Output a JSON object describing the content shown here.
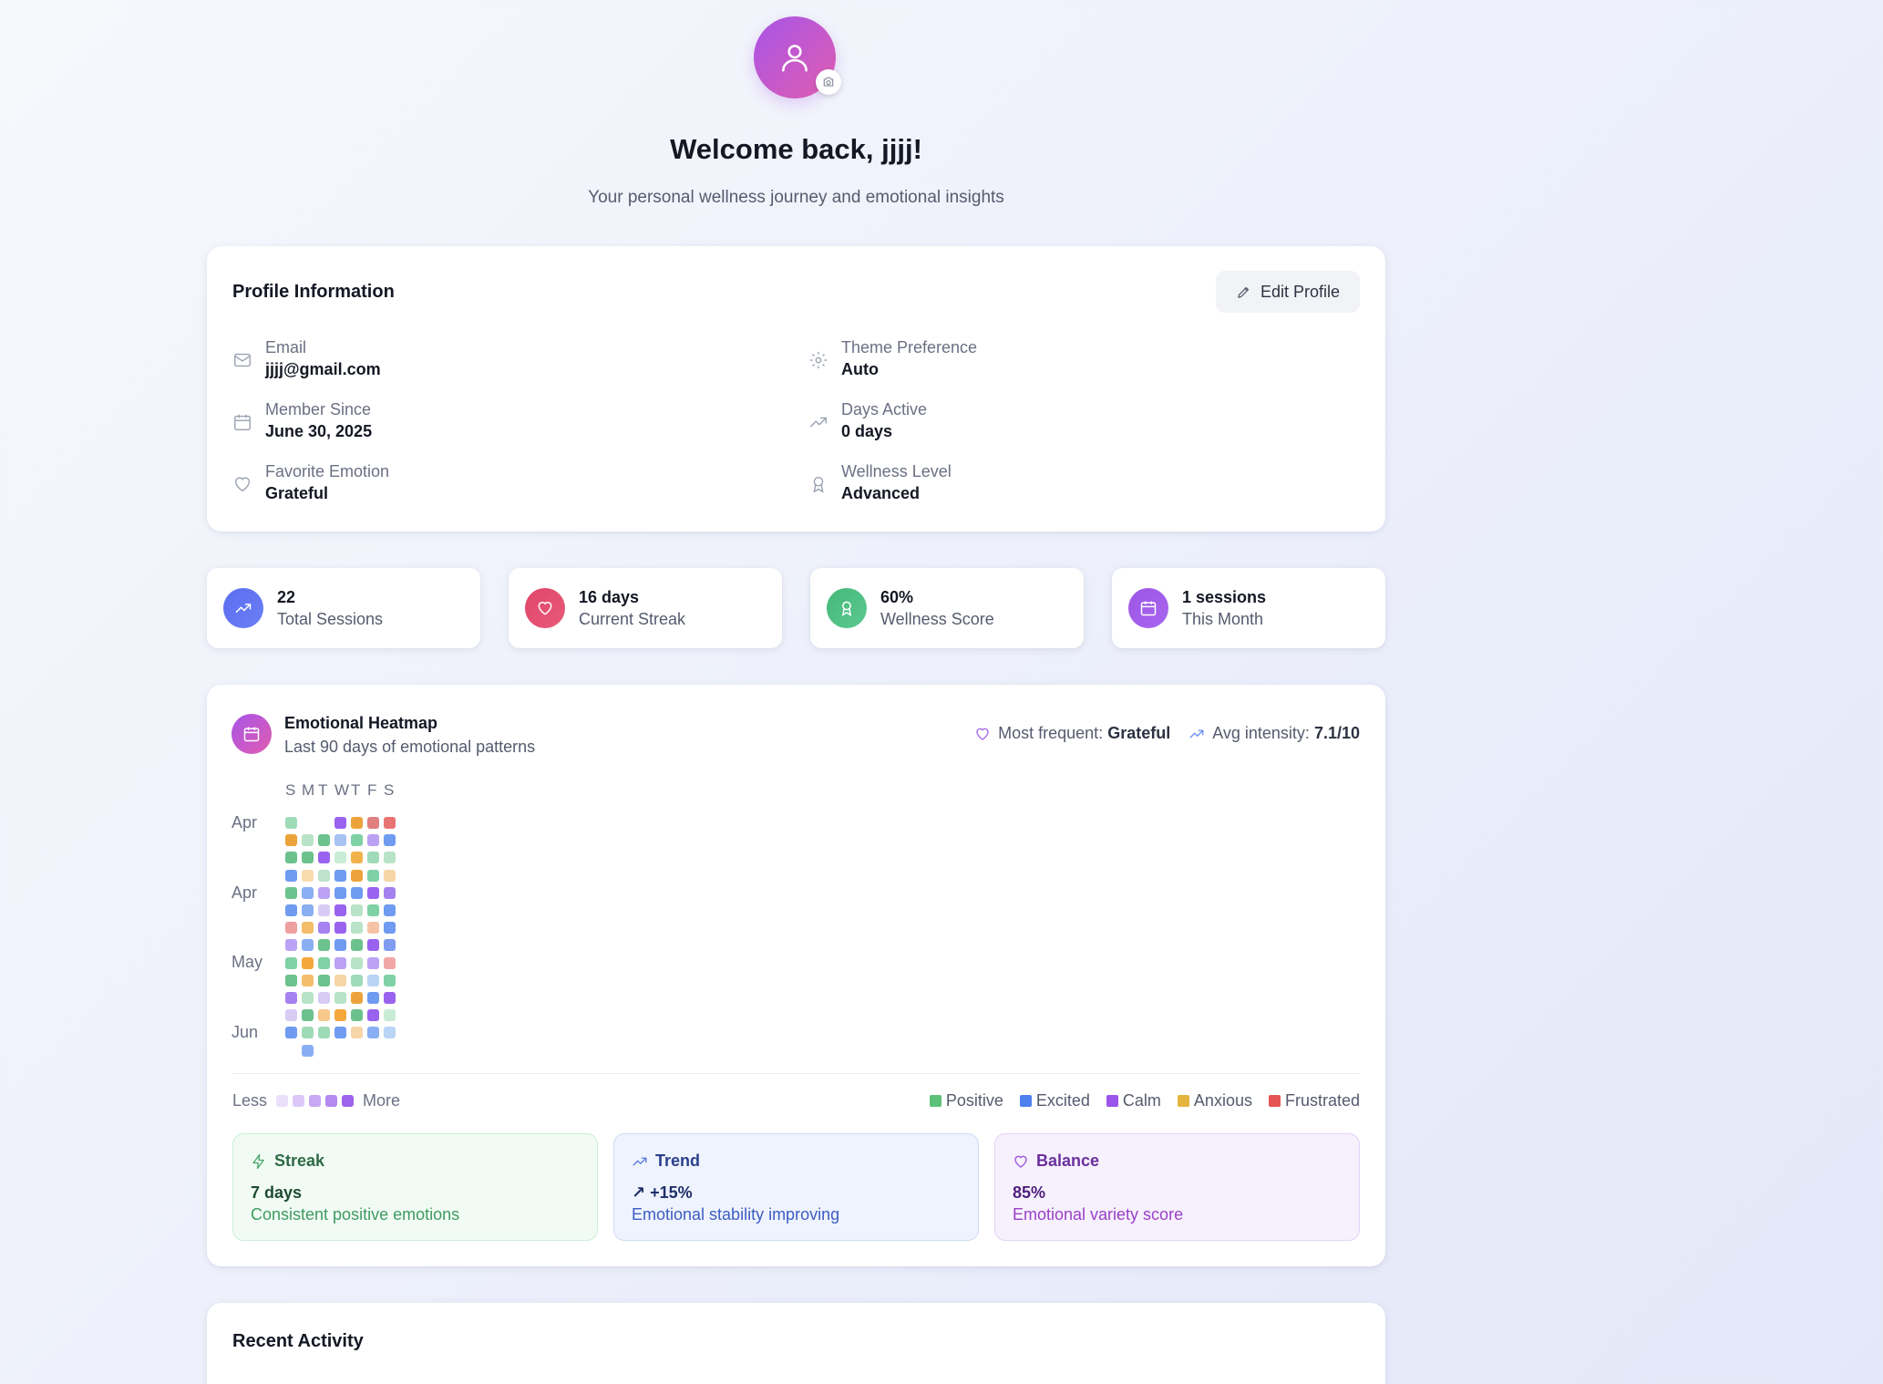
{
  "header": {
    "title": "Welcome back, jjjj!",
    "subtitle": "Your personal wellness journey and emotional insights",
    "avatar_icon": "user-icon",
    "camera_icon": "camera-icon"
  },
  "profile": {
    "heading": "Profile Information",
    "edit_label": "Edit Profile",
    "fields": [
      {
        "label": "Email",
        "value": "jjjj@gmail.com",
        "icon": "mail-icon"
      },
      {
        "label": "Theme Preference",
        "value": "Auto",
        "icon": "gear-icon"
      },
      {
        "label": "Member Since",
        "value": "June 30, 2025",
        "icon": "calendar-icon"
      },
      {
        "label": "Days Active",
        "value": "0 days",
        "icon": "trending-up-icon"
      },
      {
        "label": "Favorite Emotion",
        "value": "Grateful",
        "icon": "heart-icon"
      },
      {
        "label": "Wellness Level",
        "value": "Advanced",
        "icon": "award-icon"
      }
    ]
  },
  "stats": [
    {
      "value": "22",
      "label": "Total Sessions",
      "icon": "trending-up-icon",
      "color": "#5b6ef0"
    },
    {
      "value": "16 days",
      "label": "Current Streak",
      "icon": "heart-icon",
      "color": "#e0456a"
    },
    {
      "value": "60%",
      "label": "Wellness Score",
      "icon": "award-icon",
      "color": "#4fbf83"
    },
    {
      "value": "1 sessions",
      "label": "This Month",
      "icon": "calendar-icon",
      "color": "#9b55e6"
    }
  ],
  "heatmap": {
    "title": "Emotional Heatmap",
    "subtitle": "Last 90 days of emotional patterns",
    "most_frequent_label": "Most frequent:",
    "most_frequent_value": "Grateful",
    "avg_intensity_label": "Avg intensity:",
    "avg_intensity_value": "7.1/10",
    "day_headers": [
      "S",
      "M",
      "T",
      "W",
      "T",
      "F",
      "S"
    ],
    "month_labels": [
      "Apr",
      "Apr",
      "May",
      "Jun"
    ],
    "weeks": [
      [
        "#9fdbb8",
        null,
        null,
        "#9a63ef",
        "#eda33b",
        "#e07f7f",
        "#e87373"
      ],
      [
        "#eda33b",
        "#b9e3c6",
        "#6cc28d",
        "#a8c2f2",
        "#7fd1a6",
        "#bba2f4",
        "#6f9bf0"
      ],
      [
        "#6cc28d",
        "#6cc28d",
        "#9a63ef",
        "#c8ecd6",
        "#f2b24b",
        "#9fdbb8",
        "#b9e3c6"
      ],
      [
        "#6f9bf0",
        "#f8dcb0",
        "#bde3cd",
        "#6f9bf0",
        "#eda33b",
        "#7fd1a6",
        "#f6d5a7"
      ],
      [
        "#6cc28d",
        "#8aaef2",
        "#bba2f4",
        "#6f9bf0",
        "#6f9bf0",
        "#9a63ef",
        "#a582f0"
      ],
      [
        "#6f9bf0",
        "#8aaef2",
        "#d8ccf5",
        "#9a63ef",
        "#b9e3c6",
        "#7fd1a6",
        "#6f9bf0"
      ],
      [
        "#ee9f9f",
        "#f4bd69",
        "#a582f0",
        "#9a63ef",
        "#b9e3c6",
        "#f6c3a7",
        "#6f9bf0"
      ],
      [
        "#bba2f4",
        "#8aaef2",
        "#6cc28d",
        "#6f9bf0",
        "#6cc28d",
        "#9a63ef",
        "#7f9cf0"
      ],
      [
        "#7fd1a6",
        "#f4a73b",
        "#7fd1a6",
        "#bba2f4",
        "#b9e3c6",
        "#bba2f4",
        "#f2a6a6"
      ],
      [
        "#6cc28d",
        "#f4bd69",
        "#6cc28d",
        "#f6d5a7",
        "#9fdbb8",
        "#b9d4f5",
        "#7fd1a6"
      ],
      [
        "#a582f0",
        "#b9e3c6",
        "#d8ccf5",
        "#b9e3c6",
        "#eda33b",
        "#6f9bf0",
        "#9a63ef"
      ],
      [
        "#d8ccf5",
        "#6cc28d",
        "#f6c88c",
        "#f4a73b",
        "#6cc28d",
        "#9a63ef",
        "#c8ecd6"
      ],
      [
        "#6f9bf0",
        "#9fdbb8",
        "#9fdbb8",
        "#6f9bf0",
        "#f6d5a7",
        "#8aaef2",
        "#b9d4f5"
      ],
      [
        null,
        "#8aaef2",
        null,
        null,
        null,
        null,
        null
      ]
    ],
    "less_label": "Less",
    "more_label": "More",
    "scale_colors": [
      "#ecdffb",
      "#dcc8f8",
      "#c8a8f4",
      "#b489f0",
      "#9d63ea"
    ],
    "legend": [
      {
        "label": "Positive",
        "color": "#5cc178"
      },
      {
        "label": "Excited",
        "color": "#4e80ee"
      },
      {
        "label": "Calm",
        "color": "#9a55ea"
      },
      {
        "label": "Anxious",
        "color": "#e4b43e"
      },
      {
        "label": "Frustrated",
        "color": "#e65454"
      }
    ],
    "insights": [
      {
        "title": "Streak",
        "value": "7 days",
        "text": "Consistent positive emotions",
        "icon": "zap-icon"
      },
      {
        "title": "Trend",
        "value": "↗ +15%",
        "text": "Emotional stability improving",
        "icon": "trending-up-icon"
      },
      {
        "title": "Balance",
        "value": "85%",
        "text": "Emotional variety score",
        "icon": "heart-icon"
      }
    ]
  },
  "recent": {
    "heading": "Recent Activity"
  }
}
